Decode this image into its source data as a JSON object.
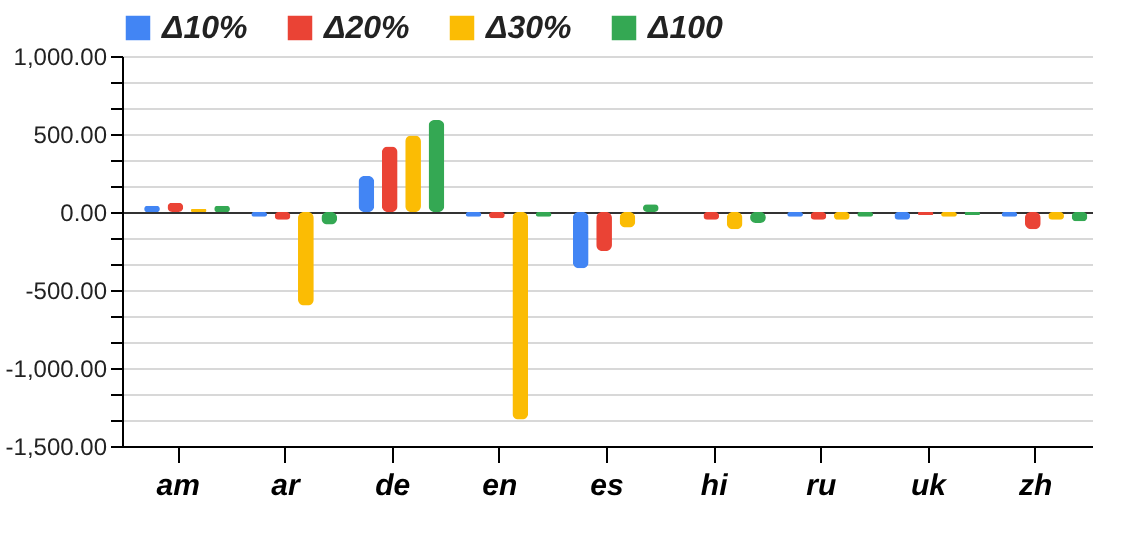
{
  "chart_data": {
    "type": "bar",
    "categories": [
      "am",
      "ar",
      "de",
      "en",
      "es",
      "hi",
      "ru",
      "uk",
      "zh"
    ],
    "series": [
      {
        "name": "Δ10%",
        "color": "#4285f4",
        "values": [
          40,
          -30,
          230,
          -30,
          -360,
          0,
          -30,
          -50,
          -30
        ]
      },
      {
        "name": "Δ20%",
        "color": "#ea4335",
        "values": [
          60,
          -50,
          420,
          -40,
          -250,
          -50,
          -50,
          -20,
          -110
        ]
      },
      {
        "name": "Δ30%",
        "color": "#fbbc04",
        "values": [
          20,
          -600,
          490,
          -1330,
          -100,
          -110,
          -50,
          -30,
          -50
        ]
      },
      {
        "name": "Δ100",
        "color": "#34a853",
        "values": [
          40,
          -80,
          590,
          -30,
          50,
          -70,
          -30,
          -20,
          -60
        ]
      }
    ],
    "ylim": [
      -1500,
      1000
    ],
    "yticks": [
      {
        "value": -1500,
        "label": "-1,500.00"
      },
      {
        "value": -1333.33,
        "label": null
      },
      {
        "value": -1166.67,
        "label": null
      },
      {
        "value": -1000,
        "label": "-1,000.00"
      },
      {
        "value": -833.33,
        "label": null
      },
      {
        "value": -666.67,
        "label": null
      },
      {
        "value": -500,
        "label": "-500.00"
      },
      {
        "value": -333.33,
        "label": null
      },
      {
        "value": -166.67,
        "label": null
      },
      {
        "value": 0,
        "label": "0.00"
      },
      {
        "value": 166.67,
        "label": null
      },
      {
        "value": 333.33,
        "label": null
      },
      {
        "value": 500,
        "label": "500.00"
      },
      {
        "value": 666.67,
        "label": null
      },
      {
        "value": 833.33,
        "label": null
      },
      {
        "value": 1000,
        "label": "1,000.00"
      }
    ],
    "grid": true,
    "legend": "top"
  }
}
